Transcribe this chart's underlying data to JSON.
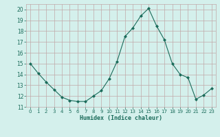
{
  "x": [
    0,
    1,
    2,
    3,
    4,
    5,
    6,
    7,
    8,
    9,
    10,
    11,
    12,
    13,
    14,
    15,
    16,
    17,
    18,
    19,
    20,
    21,
    22,
    23
  ],
  "y": [
    15.0,
    14.1,
    13.3,
    12.6,
    11.9,
    11.6,
    11.5,
    11.5,
    12.0,
    12.5,
    13.6,
    15.2,
    17.5,
    18.3,
    19.4,
    20.1,
    18.5,
    17.2,
    15.0,
    14.0,
    13.7,
    11.7,
    12.1,
    12.7
  ],
  "line_color": "#1a6b5a",
  "marker": "D",
  "marker_size": 2,
  "bg_color": "#d4f0ec",
  "grid_color": "#c0a8a8",
  "xlabel": "Humidex (Indice chaleur)",
  "xlim": [
    -0.5,
    23.5
  ],
  "ylim": [
    11,
    20.5
  ],
  "yticks": [
    11,
    12,
    13,
    14,
    15,
    16,
    17,
    18,
    19,
    20
  ],
  "xticks": [
    0,
    1,
    2,
    3,
    4,
    5,
    6,
    7,
    8,
    9,
    10,
    11,
    12,
    13,
    14,
    15,
    16,
    17,
    18,
    19,
    20,
    21,
    22,
    23
  ]
}
